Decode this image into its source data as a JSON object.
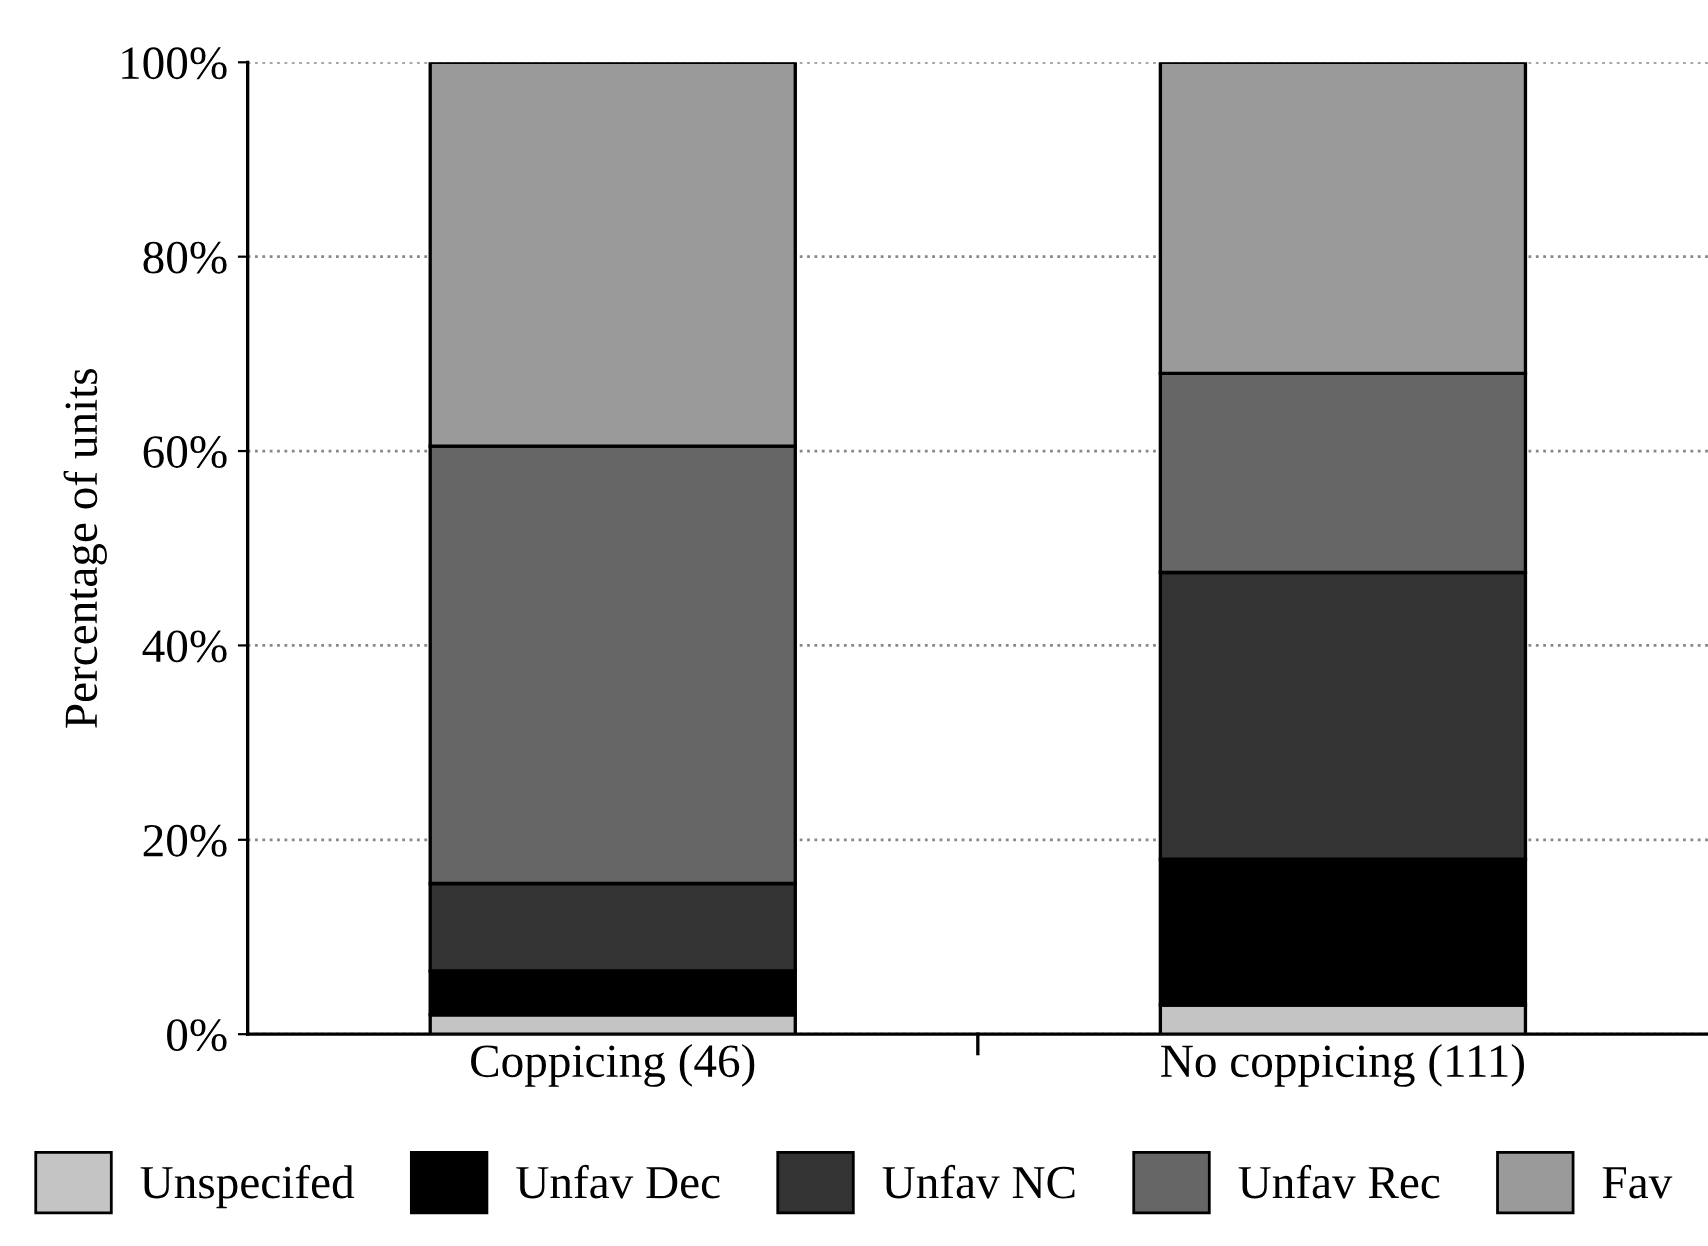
{
  "chart_data": {
    "type": "bar",
    "stacked": true,
    "ylabel": "Percentage of units",
    "categories": [
      "Coppicing (46)",
      "No coppicing (111)"
    ],
    "series": [
      {
        "name": "Unspecifed",
        "color": "#c4c4c4",
        "values": [
          2,
          3
        ]
      },
      {
        "name": "Unfav Dec",
        "color": "#000000",
        "values": [
          4.5,
          15
        ]
      },
      {
        "name": "Unfav NC",
        "color": "#333333",
        "values": [
          9,
          29.5
        ]
      },
      {
        "name": "Unfav Rec",
        "color": "#666666",
        "values": [
          45,
          20.5
        ]
      },
      {
        "name": "Fav",
        "color": "#9a9a9a",
        "values": [
          39.5,
          32
        ]
      }
    ],
    "ylim": [
      0,
      100
    ],
    "yticks": [
      {
        "value": 0,
        "label": "0%"
      },
      {
        "value": 20,
        "label": "20%"
      },
      {
        "value": 40,
        "label": "40%"
      },
      {
        "value": 60,
        "label": "60%"
      },
      {
        "value": 80,
        "label": "80%"
      },
      {
        "value": 100,
        "label": "100%"
      }
    ],
    "grid": "y",
    "legend": "bottom"
  }
}
